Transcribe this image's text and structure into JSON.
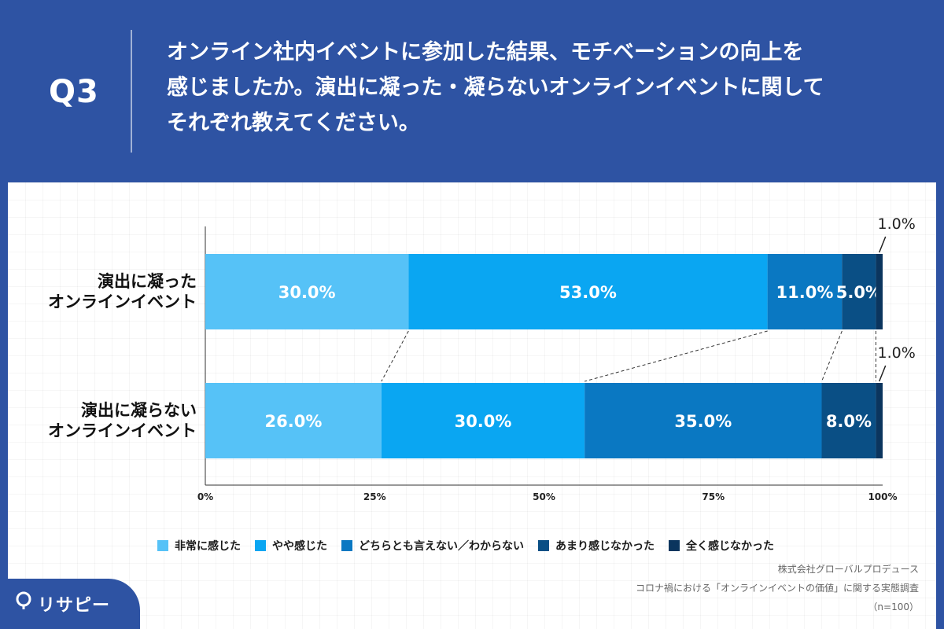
{
  "header": {
    "q_label": "Q3",
    "question_lines": [
      "オンライン社内イベントに参加した結果、モチベーションの向上を",
      "感じましたか。演出に凝った・凝らないオンラインイベントに関して",
      "それぞれ教えてください。"
    ]
  },
  "colors": {
    "background": "#2e53a3",
    "series": [
      "#56c2f7",
      "#0aa6f2",
      "#0a78c2",
      "#0a4f85",
      "#0b355e"
    ]
  },
  "chart_data": {
    "type": "bar",
    "orientation": "horizontal",
    "stacked": true,
    "normalized": true,
    "categories": [
      [
        "演出に凝った",
        "オンラインイベント"
      ],
      [
        "演出に凝らない",
        "オンラインイベント"
      ]
    ],
    "series": [
      {
        "name": "非常に感じた",
        "values": [
          30.0,
          26.0
        ],
        "labels": [
          "30.0%",
          "26.0%"
        ]
      },
      {
        "name": "やや感じた",
        "values": [
          53.0,
          30.0
        ],
        "labels": [
          "53.0%",
          "30.0%"
        ]
      },
      {
        "name": "どちらとも言えない／わからない",
        "values": [
          11.0,
          35.0
        ],
        "labels": [
          "11.0%",
          "35.0%"
        ]
      },
      {
        "name": "あまり感じなかった",
        "values": [
          5.0,
          8.0
        ],
        "labels": [
          "5.0%",
          "8.0%"
        ]
      },
      {
        "name": "全く感じなかった",
        "values": [
          1.0,
          1.0
        ],
        "labels": [
          "1.0%",
          "1.0%"
        ]
      }
    ],
    "x_ticks": [
      "0%",
      "25%",
      "50%",
      "75%",
      "100%"
    ],
    "xlim": [
      0,
      100
    ],
    "legend_position": "bottom",
    "connector_lines": true
  },
  "source": {
    "company": "株式会社グローバルプロデュース",
    "survey": "コロナ禍における「オンラインイベントの価値」に関する実態調査",
    "sample": "（n=100）"
  },
  "logo": {
    "text": "リサピー"
  }
}
